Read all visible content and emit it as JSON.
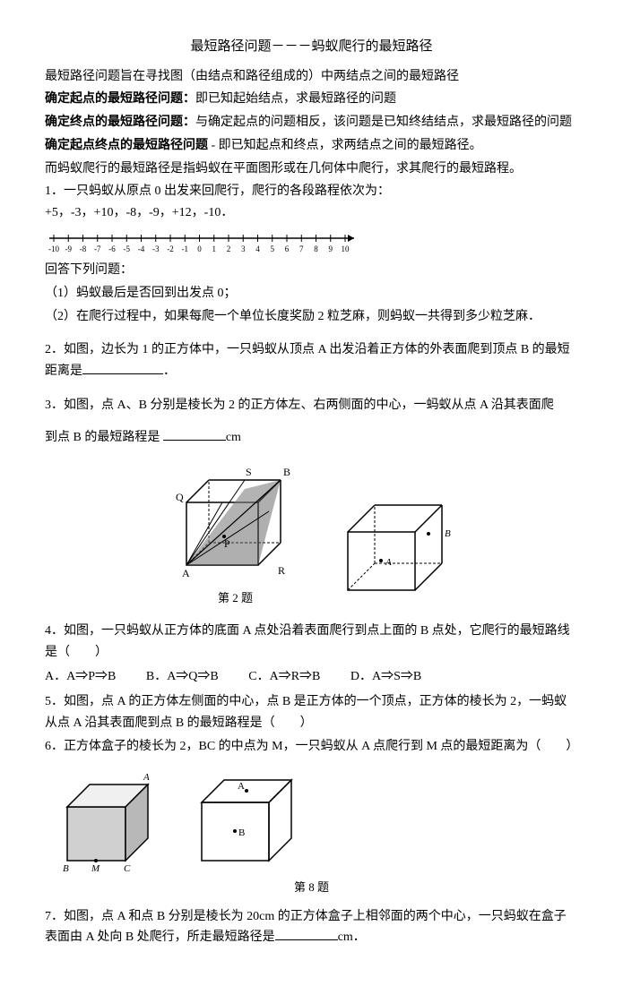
{
  "title": "最短路径问题－－－蚂蚁爬行的最短路径",
  "intro": "最短路径问题旨在寻找图（由结点和路径组成的）中两结点之间的最短路径",
  "def1_label": "确定起点的最短路径问题：",
  "def1_text": "即已知起始结点，求最短路径的问题",
  "def2_label": "确定终点的最短路径问题：",
  "def2_text": "与确定起点的问题相反，该问题是已知终结结点，求最短路径的问题",
  "def3_label": "确定起点终点的最短路径问题",
  "def3_text": " - 即已知起点和终点，求两结点之间的最短路径。",
  "context": "而蚂蚁爬行的最短路径是指蚂蚁在平面图形或在几何体中爬行，求其爬行的最短路程。",
  "q1": "1．一只蚂蚁从原点 0 出发来回爬行，爬行的各段路程依次为：+5，-3，+10，-8，-9，+12，-10．",
  "number_line_labels": [
    "-10",
    "-9",
    "-8",
    "-7",
    "-6",
    "-5",
    "-4",
    "-3",
    "-2",
    "-1",
    "0",
    "1",
    "2",
    "3",
    "4",
    "5",
    "6",
    "7",
    "8",
    "9",
    "10"
  ],
  "q1_sub": "回答下列问题：",
  "q1_1": "（1）蚂蚁最后是否回到出发点 0；",
  "q1_2": "（2）在爬行过程中，如果每爬一个单位长度奖励 2 粒芝麻，则蚂蚁一共得到多少粒芝麻．",
  "q2": "2．如图，边长为 1 的正方体中，一只蚂蚁从顶点 A 出发沿着正方体的外表面爬到顶点 B 的最短距离是",
  "q2_end": "．",
  "q3_a": "3．如图，点 A、B 分别是棱长为 2 的正方体左、右两侧面的中心，一蚂蚁从点 A 沿其表面爬",
  "q3_b": "到点 B 的最短路程是 ",
  "q3_unit": "cm",
  "caption2": "第 2 题",
  "q4": "4．如图，一只蚂蚁从正方体的底面 A 点处沿着表面爬行到点上面的 B 点处，它爬行的最短路线是（　　）",
  "q4_opts": {
    "A": "A．A⇒P⇒B",
    "B": "B．A⇒Q⇒B",
    "C": "C．A⇒R⇒B",
    "D": "D．A⇒S⇒B"
  },
  "q5": "5．如图，点 A 的正方体左侧面的中心，点 B 是正方体的一个顶点，正方体的棱长为 2，一蚂蚁从点 A 沿其表面爬到点 B 的最短路程是（　　）",
  "q6": "6．正方体盒子的棱长为 2，BC 的中点为 M，一只蚂蚁从 A 点爬行到 M 点的最短距离为（　　）",
  "caption8": "第 8 题",
  "q7_a": "7．如图，点 A 和点 B 分别是棱长为 20cm 的正方体盒子上相邻面的两个中心，一只蚂蚁在盒子表面由 A 处向 B 处爬行，所走最短路径是",
  "q7_unit": "cm．",
  "colors": {
    "text": "#000000",
    "bg": "#ffffff",
    "line": "#000000",
    "shade": "#808080"
  }
}
